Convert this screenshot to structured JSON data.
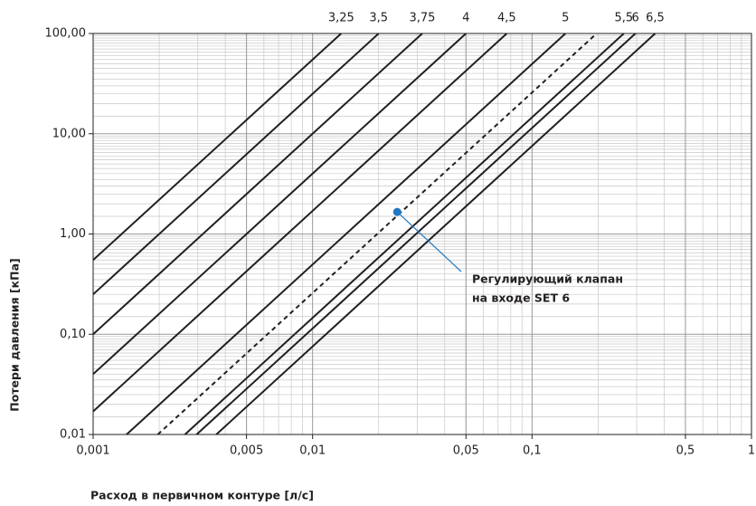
{
  "chart_data": {
    "type": "line",
    "xlabel": "Расход в первичном контуре [л/с]",
    "ylabel": "Потери давления  [кПа]",
    "xscale": "log",
    "yscale": "log",
    "grid": true,
    "xlim": [
      0.001,
      1
    ],
    "ylim": [
      0.01,
      100
    ],
    "xticks": [
      {
        "value": 0.001,
        "label": "0,001"
      },
      {
        "value": 0.005,
        "label": "0,005"
      },
      {
        "value": 0.01,
        "label": "0,01"
      },
      {
        "value": 0.05,
        "label": "0,05"
      },
      {
        "value": 0.1,
        "label": "0,1"
      },
      {
        "value": 0.5,
        "label": "0,5"
      },
      1
    ],
    "yticks": [
      {
        "value": 0.01,
        "label": "0,01"
      },
      {
        "value": 0.1,
        "label": "0,10"
      },
      {
        "value": 1,
        "label": "1,00"
      },
      {
        "value": 10,
        "label": "10,00"
      },
      {
        "value": 100,
        "label": "100,00"
      }
    ],
    "series": [
      {
        "name": "3,25",
        "color": "#231f20",
        "x": [
          0.001,
          0.0135
        ],
        "values": [
          0.55,
          100
        ]
      },
      {
        "name": "3,5",
        "color": "#231f20",
        "x": [
          0.001,
          0.02
        ],
        "values": [
          0.25,
          100
        ]
      },
      {
        "name": "3,75",
        "color": "#231f20",
        "x": [
          0.001,
          0.0316
        ],
        "values": [
          0.1,
          100
        ]
      },
      {
        "name": "4",
        "color": "#231f20",
        "x": [
          0.001,
          0.05
        ],
        "values": [
          0.04,
          100
        ]
      },
      {
        "name": "4,5",
        "color": "#231f20",
        "x": [
          0.001,
          0.0767
        ],
        "values": [
          0.017,
          100
        ]
      },
      {
        "name": "5",
        "color": "#231f20",
        "x": [
          0.00142,
          0.142
        ],
        "values": [
          0.01,
          100
        ]
      },
      {
        "color": "#231f20",
        "dashed": true,
        "x": [
          0.00197,
          0.197
        ],
        "values": [
          0.01,
          100
        ]
      },
      {
        "name": "5,5",
        "color": "#231f20",
        "x": [
          0.00262,
          0.262
        ],
        "values": [
          0.01,
          100
        ]
      },
      {
        "name": "6",
        "color": "#231f20",
        "x": [
          0.00296,
          0.296
        ],
        "values": [
          0.01,
          100
        ]
      },
      {
        "name": "6,5",
        "color": "#231f20",
        "x": [
          0.00364,
          0.364
        ],
        "values": [
          0.01,
          100
        ]
      }
    ],
    "point": {
      "x": 0.0243,
      "value": 1.66,
      "color": "#1f78c1",
      "annotation": [
        "Регулирующий клапан",
        "на входе SET 6"
      ]
    }
  }
}
